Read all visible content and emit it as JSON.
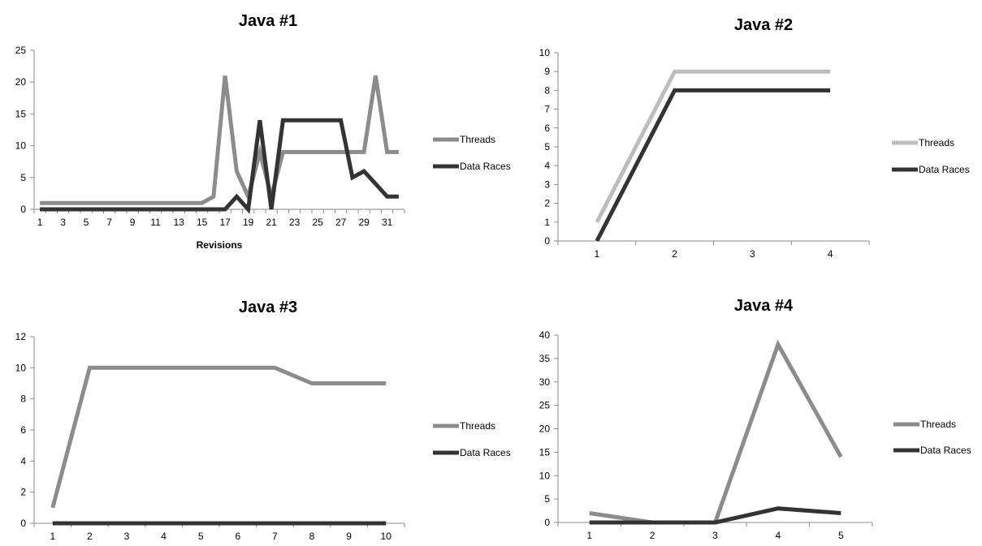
{
  "chart_data": [
    {
      "type": "line",
      "title": "Java #1",
      "xlabel": "Revisions",
      "ylabel": "",
      "ylim": [
        0,
        25
      ],
      "yticks": [
        0,
        5,
        10,
        15,
        20,
        25
      ],
      "categories": [
        "1",
        "2",
        "3",
        "4",
        "5",
        "6",
        "7",
        "8",
        "9",
        "10",
        "11",
        "12",
        "13",
        "14",
        "15",
        "16",
        "17",
        "18",
        "19",
        "20",
        "21",
        "22",
        "23",
        "24",
        "25",
        "26",
        "27",
        "28",
        "29",
        "30",
        "31",
        "32"
      ],
      "xtick_labels": [
        "1",
        "",
        "3",
        "",
        "5",
        "",
        "7",
        "",
        "9",
        "",
        "11",
        "",
        "13",
        "",
        "15",
        "",
        "17",
        "",
        "19",
        "",
        "21",
        "",
        "23",
        "",
        "25",
        "",
        "27",
        "",
        "29",
        "",
        "31",
        ""
      ],
      "legend": "right",
      "series": [
        {
          "name": "Threads",
          "color": "#8c8c8c",
          "values": [
            1,
            1,
            1,
            1,
            1,
            1,
            1,
            1,
            1,
            1,
            1,
            1,
            1,
            1,
            1,
            2,
            21,
            6,
            2,
            9,
            2,
            9,
            9,
            9,
            9,
            9,
            9,
            9,
            9,
            21,
            9,
            9
          ]
        },
        {
          "name": "Data Races",
          "color": "#333333",
          "values": [
            0,
            0,
            0,
            0,
            0,
            0,
            0,
            0,
            0,
            0,
            0,
            0,
            0,
            0,
            0,
            0,
            0,
            2,
            0,
            14,
            0,
            14,
            14,
            14,
            14,
            14,
            14,
            5,
            6,
            4,
            2,
            2
          ]
        }
      ]
    },
    {
      "type": "line",
      "title": "Java #2",
      "xlabel": "",
      "ylabel": "",
      "ylim": [
        0,
        10
      ],
      "yticks": [
        0,
        1,
        2,
        3,
        4,
        5,
        6,
        7,
        8,
        9,
        10
      ],
      "categories": [
        "1",
        "2",
        "3",
        "4"
      ],
      "xtick_labels": [
        "1",
        "2",
        "3",
        "4"
      ],
      "legend": "right",
      "series": [
        {
          "name": "Threads",
          "color": "#bdbdbd",
          "values": [
            1,
            9,
            9,
            9
          ]
        },
        {
          "name": "Data Races",
          "color": "#333333",
          "values": [
            0,
            8,
            8,
            8
          ]
        }
      ]
    },
    {
      "type": "line",
      "title": "Java #3",
      "xlabel": "",
      "ylabel": "",
      "ylim": [
        0,
        12
      ],
      "yticks": [
        0,
        2,
        4,
        6,
        8,
        10,
        12
      ],
      "categories": [
        "1",
        "2",
        "3",
        "4",
        "5",
        "6",
        "7",
        "8",
        "9",
        "10"
      ],
      "xtick_labels": [
        "1",
        "2",
        "3",
        "4",
        "5",
        "6",
        "7",
        "8",
        "9",
        "10"
      ],
      "legend": "right",
      "series": [
        {
          "name": "Threads",
          "color": "#8c8c8c",
          "values": [
            1,
            10,
            10,
            10,
            10,
            10,
            10,
            9,
            9,
            9
          ]
        },
        {
          "name": "Data Races",
          "color": "#333333",
          "values": [
            0,
            0,
            0,
            0,
            0,
            0,
            0,
            0,
            0,
            0
          ]
        }
      ]
    },
    {
      "type": "line",
      "title": "Java #4",
      "xlabel": "",
      "ylabel": "",
      "ylim": [
        0,
        40
      ],
      "yticks": [
        0,
        5,
        10,
        15,
        20,
        25,
        30,
        35,
        40
      ],
      "categories": [
        "1",
        "2",
        "3",
        "4",
        "5"
      ],
      "xtick_labels": [
        "1",
        "2",
        "3",
        "4",
        "5"
      ],
      "legend": "right",
      "series": [
        {
          "name": "Threads",
          "color": "#8c8c8c",
          "values": [
            2,
            0,
            0,
            38,
            14
          ]
        },
        {
          "name": "Data Races",
          "color": "#333333",
          "values": [
            0,
            0,
            0,
            3,
            2
          ]
        }
      ]
    }
  ]
}
